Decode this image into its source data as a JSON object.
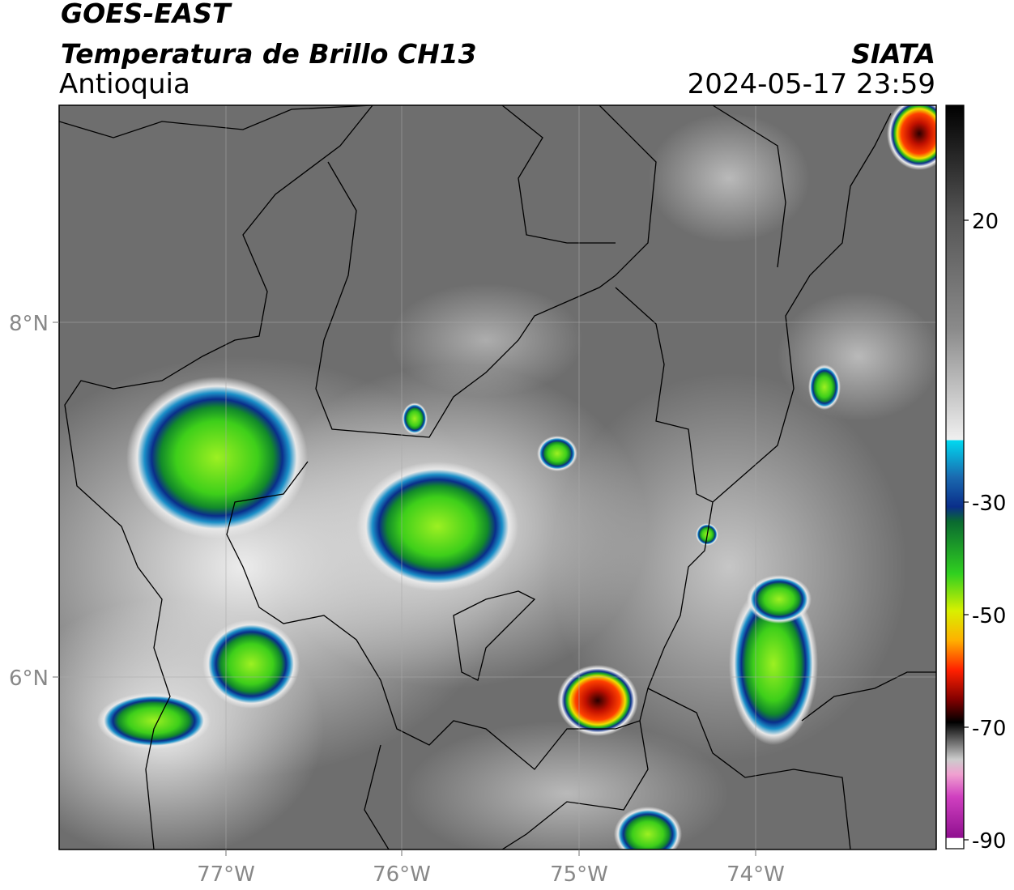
{
  "header": {
    "satellite": "GOES-EAST",
    "product": "Temperatura de Brillo CH13",
    "region": "Antioquia",
    "agency": "SIATA",
    "timestamp": "2024-05-17 23:59"
  },
  "map": {
    "lon_labels": [
      "77°W",
      "76°W",
      "75°W",
      "74°W"
    ],
    "lat_labels": [
      "8°N",
      "6°N"
    ]
  },
  "colorbar": {
    "ticks": [
      20,
      -30,
      -50,
      -70,
      -90
    ]
  }
}
